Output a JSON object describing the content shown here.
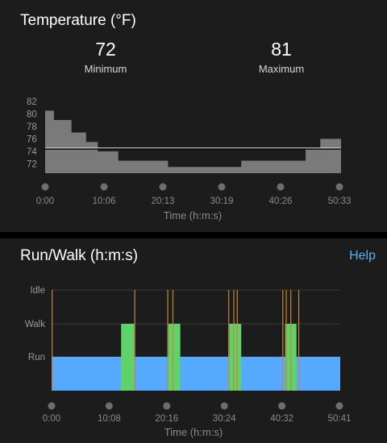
{
  "temperature": {
    "title": "Temperature (°F)",
    "minimum": {
      "value": "72",
      "label": "Minimum"
    },
    "maximum": {
      "value": "81",
      "label": "Maximum"
    }
  },
  "run_walk": {
    "title": "Run/Walk (h:m:s)",
    "help_label": "Help"
  },
  "colors": {
    "run": "#55aaff",
    "walk": "#5fd36a",
    "idle_marker": "#c8843a",
    "temp_fill": "#7a7a7a",
    "panel": "#1c1c1c"
  },
  "chart_data": [
    {
      "type": "area",
      "title": "Temperature (°F)",
      "xlabel": "Time (h:m:s)",
      "ylabel": "",
      "x_ticks": [
        "0:00",
        "10:06",
        "20:13",
        "30:19",
        "40:26",
        "50:33"
      ],
      "y_ticks": [
        "72",
        "74",
        "76",
        "78",
        "80",
        "82"
      ],
      "ylim": [
        70.5,
        83
      ],
      "xlim_minutes": [
        0,
        50.55
      ],
      "average_line": 74.4,
      "x_minutes": [
        0,
        1.5,
        4.5,
        7,
        9,
        12.5,
        21,
        33.5,
        44.5,
        47,
        50.55
      ],
      "y_values": [
        80.5,
        79,
        77,
        75.5,
        74,
        72.5,
        71.5,
        72.5,
        74.5,
        76,
        80.5
      ]
    },
    {
      "type": "bar",
      "title": "Run/Walk (h:m:s)",
      "xlabel": "Time (h:m:s)",
      "categories": [
        "Run",
        "Walk",
        "Idle"
      ],
      "x_ticks": [
        "0:00",
        "10:08",
        "20:16",
        "30:24",
        "40:32",
        "50:41"
      ],
      "xlim_minutes": [
        0,
        50.68
      ],
      "run_span_minutes": [
        0,
        50.68
      ],
      "walk_segments_minutes": [
        [
          12.2,
          14.5
        ],
        [
          20.5,
          22.6
        ],
        [
          31.2,
          33.3
        ],
        [
          41.0,
          43.0
        ]
      ],
      "idle_markers_minutes": [
        0.1,
        14.6,
        20.4,
        21.3,
        31.1,
        32.0,
        32.6,
        40.6,
        41.2,
        42.0,
        43.4
      ]
    }
  ]
}
